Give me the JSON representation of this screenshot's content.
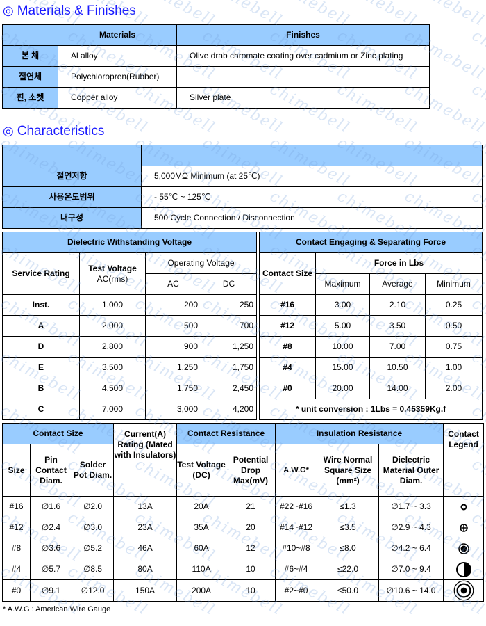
{
  "watermark": "chimebell",
  "materials": {
    "title": "Materials & Finishes",
    "title_icon": "double-circle-icon",
    "headers": [
      "",
      "Materials",
      "Finishes"
    ],
    "rows": [
      {
        "label": "본 체",
        "material": "Al alloy",
        "finish": "Olive drab chromate coating over cadmium or Zinc plating"
      },
      {
        "label": "절연체",
        "material": "Polychloropren(Rubber)",
        "finish": ""
      },
      {
        "label": "핀, 소켓",
        "material": "Copper alloy",
        "finish": "Silver plate"
      }
    ]
  },
  "characteristics": {
    "title": "Characteristics",
    "title_icon": "double-circle-icon",
    "rows": [
      {
        "label": "절연저항",
        "value": "5,000MΩ Minimum (at 25℃)"
      },
      {
        "label": "사용온도범위",
        "value": "- 55℃ ~ 125℃"
      },
      {
        "label": "내구성",
        "value": "500 Cycle Connection / Disconnection"
      }
    ]
  },
  "dielectric": {
    "title": "Dielectric Withstanding Voltage",
    "service_rating": "Service Rating",
    "test_voltage": "Test Voltage",
    "test_voltage_unit": "AC(rms)",
    "operating_voltage": "Operating Voltage",
    "ac": "AC",
    "dc": "DC",
    "rows": [
      [
        "Inst.",
        "1.000",
        "200",
        "250"
      ],
      [
        "A",
        "2.000",
        "500",
        "700"
      ],
      [
        "D",
        "2.800",
        "900",
        "1,250"
      ],
      [
        "E",
        "3.500",
        "1,250",
        "1,750"
      ],
      [
        "B",
        "4.500",
        "1,750",
        "2,450"
      ],
      [
        "C",
        "7.000",
        "3,000",
        "4,200"
      ]
    ]
  },
  "force": {
    "title": "Contact Engaging & Separating Force",
    "contact_size": "Contact Size",
    "force_in_lbs": "Force in Lbs",
    "maximum": "Maximum",
    "average": "Average",
    "minimum": "Minimum",
    "rows": [
      [
        "#16",
        "3.00",
        "2.10",
        "0.25"
      ],
      [
        "#12",
        "5.00",
        "3.50",
        "0.50"
      ],
      [
        "#8",
        "10.00",
        "7.00",
        "0.75"
      ],
      [
        "#4",
        "15.00",
        "10.50",
        "1.00"
      ],
      [
        "#0",
        "20.00",
        "14.00",
        "2.00"
      ]
    ],
    "note": "* unit conversion : 1Lbs = 0.45359Kg.f"
  },
  "contact": {
    "contact_size": "Contact Size",
    "current_rating": "Current(A) Rating (Mated with Insulators)",
    "contact_resistance": "Contact Resistance",
    "insulation_resistance": "Insulation Resistance",
    "contact_legend": "Contact Legend",
    "size": "Size",
    "pin_contact_diam": "Pin Contact Diam.",
    "solder_pot_diam": "Solder Pot Diam.",
    "test_voltage_dc": "Test Voltage (DC)",
    "potential_drop": "Potential Drop Max(mV)",
    "awg": "A.W.G*",
    "wire_normal": "Wire Normal Square Size",
    "wire_unit": "(mm²)",
    "dielectric_outer": "Dielectric Material Outer Diam.",
    "rows": [
      {
        "size": "#16",
        "pin": "∅1.6",
        "solder": "∅2.0",
        "current": "13A",
        "test": "20A",
        "drop": "21",
        "awg": "#22~#16",
        "wire": "≤1.3",
        "outer": "∅1.7 ~ 3.3",
        "legend_icon": "small-ring-icon"
      },
      {
        "size": "#12",
        "pin": "∅2.4",
        "solder": "∅3.0",
        "current": "23A",
        "test": "35A",
        "drop": "20",
        "awg": "#14~#12",
        "wire": "≤3.5",
        "outer": "∅2.9 ~ 4.3",
        "legend_icon": "circle-plus-icon"
      },
      {
        "size": "#8",
        "pin": "∅3.6",
        "solder": "∅5.2",
        "current": "46A",
        "test": "60A",
        "drop": "12",
        "awg": "#10~#8",
        "wire": "≤8.0",
        "outer": "∅4.2 ~ 6.4",
        "legend_icon": "bullseye-icon"
      },
      {
        "size": "#4",
        "pin": "∅5.7",
        "solder": "∅8.5",
        "current": "80A",
        "test": "110A",
        "drop": "10",
        "awg": "#6~#4",
        "wire": "≤22.0",
        "outer": "∅7.0 ~ 9.4",
        "legend_icon": "half-circle-icon"
      },
      {
        "size": "#0",
        "pin": "∅9.1",
        "solder": "∅12.0",
        "current": "150A",
        "test": "200A",
        "drop": "10",
        "awg": "#2~#0",
        "wire": "≤50.0",
        "outer": "∅10.6 ~ 14.0",
        "legend_icon": "large-ring-dot-icon"
      }
    ],
    "footnote": "* A.W.G : American Wire Gauge"
  }
}
